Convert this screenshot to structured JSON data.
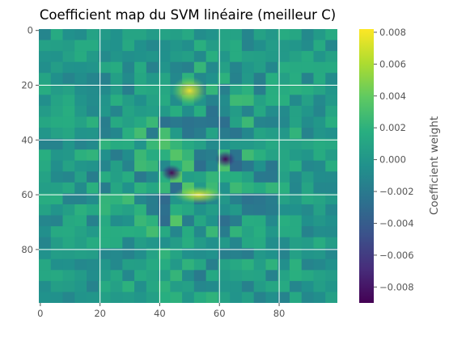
{
  "chart_data": {
    "type": "heatmap",
    "title": "Coefficient map du SVM linéaire (meilleur C)",
    "xlabel": "",
    "ylabel": "",
    "x_range": [
      0,
      99
    ],
    "y_range": [
      0,
      99
    ],
    "y_inverted": true,
    "grid": true,
    "colormap": "viridis",
    "x_ticks": [
      "0",
      "20",
      "40",
      "60",
      "80"
    ],
    "y_ticks": [
      "0",
      "20",
      "40",
      "60",
      "80"
    ],
    "colorbar": {
      "label": "Coefficient weight",
      "range": [
        -0.009,
        0.0082
      ],
      "ticks": [
        "0.008",
        "0.006",
        "0.004",
        "0.002",
        "0.000",
        "−0.002",
        "−0.004",
        "−0.006",
        "−0.008"
      ]
    },
    "features": [
      {
        "region": "forehead highlight",
        "x": 50,
        "y": 22,
        "value": 0.008
      },
      {
        "region": "left eye",
        "x": 44,
        "y": 52,
        "value": -0.0085
      },
      {
        "region": "right eye",
        "x": 62,
        "y": 47,
        "value": -0.006
      },
      {
        "region": "mouth",
        "x": 53,
        "y": 60,
        "value": 0.006
      },
      {
        "region": "background",
        "value": 0.0
      }
    ]
  }
}
